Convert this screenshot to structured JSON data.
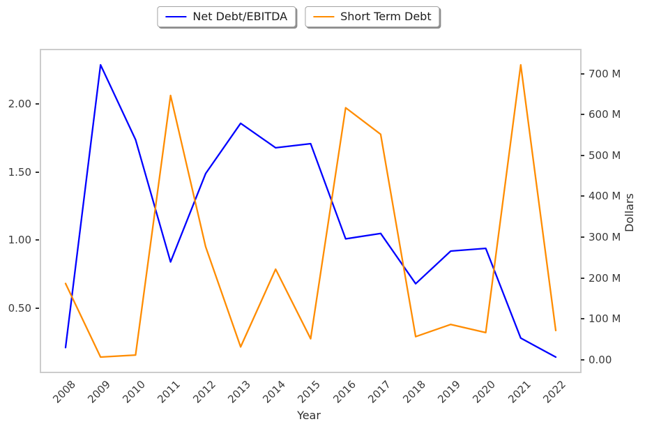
{
  "figure": {
    "legend": [
      {
        "label": "Net Debt/EBITDA",
        "color": "#0000ff"
      },
      {
        "label": "Short Term Debt",
        "color": "#ff8c00"
      }
    ]
  },
  "chart_data": {
    "type": "line",
    "title": "",
    "xlabel": "Year",
    "ylabel_left": "",
    "ylabel_right": "Dollars",
    "grid": false,
    "legend_position": "upper center, outside plot, two framed boxes with shadow",
    "x": [
      2008,
      2009,
      2010,
      2011,
      2012,
      2013,
      2014,
      2015,
      2016,
      2017,
      2018,
      2019,
      2020,
      2021,
      2022
    ],
    "series": [
      {
        "name": "Net Debt/EBITDA",
        "axis": "left",
        "color": "#0000ff",
        "values": [
          0.22,
          2.3,
          1.75,
          0.85,
          1.5,
          1.87,
          1.69,
          1.72,
          1.02,
          1.06,
          0.69,
          0.93,
          0.95,
          0.29,
          0.15
        ]
      },
      {
        "name": "Short Term Debt",
        "axis": "right",
        "color": "#ff8c00",
        "units": "millions of dollars",
        "values": [
          190,
          10,
          15,
          650,
          280,
          35,
          225,
          55,
          620,
          555,
          60,
          90,
          70,
          725,
          75
        ]
      }
    ],
    "left_axis": {
      "ylim": [
        0.0425,
        2.4075
      ],
      "ticks": [
        {
          "label": "0.50",
          "value": 0.5
        },
        {
          "label": "1.00",
          "value": 1.0
        },
        {
          "label": "1.50",
          "value": 1.5
        },
        {
          "label": "2.00",
          "value": 2.0
        }
      ]
    },
    "right_axis": {
      "ylim": [
        -25.75,
        760.75
      ],
      "ticks": [
        {
          "label": "0.00",
          "value": 0
        },
        {
          "label": "100 M",
          "value": 100
        },
        {
          "label": "200 M",
          "value": 200
        },
        {
          "label": "300 M",
          "value": 300
        },
        {
          "label": "400 M",
          "value": 400
        },
        {
          "label": "500 M",
          "value": 500
        },
        {
          "label": "600 M",
          "value": 600
        },
        {
          "label": "700 M",
          "value": 700
        }
      ]
    }
  }
}
